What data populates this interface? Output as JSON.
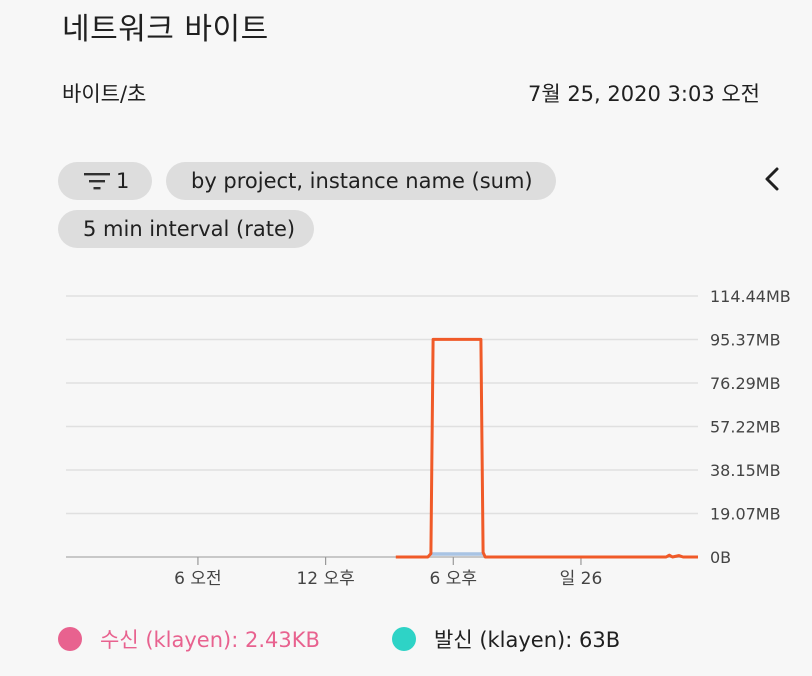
{
  "header": {
    "title": "네트워크 바이트",
    "unit": "바이트/초",
    "timestamp": "7월 25, 2020 3:03 오전"
  },
  "filters": {
    "filter_count": "1",
    "group_by": "by project, instance name (sum)",
    "interval": "5 min interval (rate)"
  },
  "icons": {
    "filter": "filter-icon",
    "back": "chevron-left-icon"
  },
  "chart_data": {
    "type": "line",
    "y_ticks": [
      "114.44MB",
      "95.37MB",
      "76.29MB",
      "57.22MB",
      "38.15MB",
      "19.07MB",
      "0B"
    ],
    "y_tick_values": [
      114.44,
      95.37,
      76.29,
      57.22,
      38.15,
      19.07,
      0
    ],
    "ylim": [
      0,
      114.44
    ],
    "x_ticks": [
      "6 오전",
      "12 오후",
      "6 오후",
      "일 26"
    ],
    "x_tick_hours": [
      6,
      12,
      18,
      24
    ],
    "xlim": [
      -0.2,
      29.5
    ],
    "y_unit": "MB",
    "grid": true,
    "series": [
      {
        "name": "수신 (klayen)",
        "color": "#f05a28",
        "points": [
          [
            15.3,
            0
          ],
          [
            16.8,
            0
          ],
          [
            16.95,
            1.5
          ],
          [
            17.05,
            95.4
          ],
          [
            19.3,
            95.4
          ],
          [
            19.4,
            2.0
          ],
          [
            19.5,
            0
          ],
          [
            28.0,
            0
          ],
          [
            28.15,
            0.8
          ],
          [
            28.3,
            0
          ],
          [
            28.6,
            0.6
          ],
          [
            28.8,
            0
          ],
          [
            29.5,
            0
          ]
        ]
      },
      {
        "name": "발신 (klayen)",
        "color": "#a9c4e4",
        "points": [
          [
            16.95,
            1.3
          ],
          [
            19.4,
            1.3
          ]
        ]
      }
    ]
  },
  "legend": {
    "rx_label": "수신 (klayen): 2.43KB",
    "rx_color": "#e8628f",
    "tx_label": "발신 (klayen): 63B",
    "tx_color": "#2ed3c6"
  }
}
